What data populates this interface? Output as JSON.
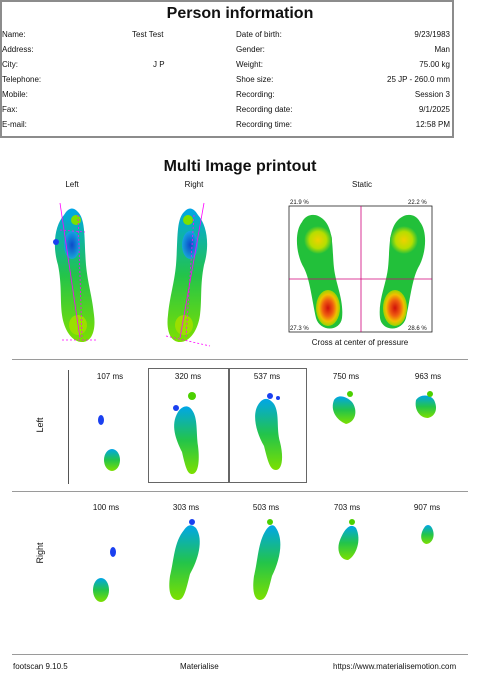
{
  "person_info": {
    "title": "Person information",
    "left_fields": [
      {
        "label": "Name:",
        "value": "Test Test"
      },
      {
        "label": "Address:",
        "value": ""
      },
      {
        "label": "City:",
        "value": "J P"
      },
      {
        "label": "Telephone:",
        "value": ""
      },
      {
        "label": "Mobile:",
        "value": ""
      },
      {
        "label": "Fax:",
        "value": ""
      },
      {
        "label": "E-mail:",
        "value": ""
      }
    ],
    "right_fields": [
      {
        "label": "Date of birth:",
        "value": "9/23/1983"
      },
      {
        "label": "Gender:",
        "value": "Man"
      },
      {
        "label": "Weight:",
        "value": "75.00 kg"
      },
      {
        "label": "Shoe size:",
        "value": "25 JP - 260.0 mm"
      },
      {
        "label": "Recording:",
        "value": "Session 3"
      },
      {
        "label": "Recording date:",
        "value": "9/1/2025"
      },
      {
        "label": "Recording time:",
        "value": "12:58 PM"
      }
    ]
  },
  "printout": {
    "title": "Multi Image printout",
    "captions": {
      "left": "Left",
      "right": "Right",
      "static": "Static"
    },
    "static_percentages": {
      "top_left": "21.9 %",
      "top_right": "22.2 %",
      "bottom_left": "27.3 %",
      "bottom_right": "28.6 %"
    },
    "static_note": "Cross at center of pressure"
  },
  "timeline": {
    "left": {
      "label": "Left",
      "times": [
        "107 ms",
        "320 ms",
        "537 ms",
        "750 ms",
        "963 ms"
      ]
    },
    "right": {
      "label": "Right",
      "times": [
        "100 ms",
        "303 ms",
        "503 ms",
        "703 ms",
        "907 ms"
      ]
    }
  },
  "footer": {
    "version": "footscan 9.10.5",
    "company": "Materialise",
    "url": "https://www.materialisemotion.com"
  }
}
